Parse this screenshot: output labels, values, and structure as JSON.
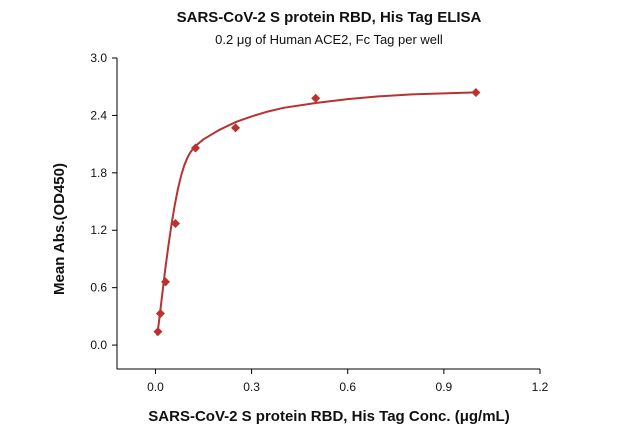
{
  "chart_data": {
    "type": "scatter",
    "title": "SARS-CoV-2 S protein RBD, His Tag ELISA",
    "subtitle": "0.2 μg of Human ACE2, Fc Tag per well",
    "xlabel": "SARS-CoV-2 S protein RBD, His Tag Conc. (μg/mL)",
    "ylabel": "Mean Abs.(OD450)",
    "xlim": [
      -0.12,
      1.2
    ],
    "ylim": [
      -0.25,
      3.0
    ],
    "xticks": [
      "0.0",
      "0.3",
      "0.6",
      "0.9",
      "1.2"
    ],
    "xtick_values": [
      0.0,
      0.3,
      0.6,
      0.9,
      1.2
    ],
    "yticks": [
      "0.0",
      "0.6",
      "1.2",
      "1.8",
      "2.4",
      "3.0"
    ],
    "ytick_values": [
      0.0,
      0.6,
      1.2,
      1.8,
      2.4,
      3.0
    ],
    "grid": false,
    "series": [
      {
        "marker": "diamond",
        "color": "#b83232",
        "x": [
          0.0078,
          0.0156,
          0.0313,
          0.0625,
          0.125,
          0.25,
          0.5,
          1.0
        ],
        "y": [
          0.14,
          0.33,
          0.66,
          1.27,
          2.06,
          2.27,
          2.58,
          2.64
        ]
      }
    ],
    "fit": {
      "type": "curve",
      "color": "#b83232",
      "x": [
        0.005,
        0.01,
        0.015,
        0.02,
        0.03,
        0.04,
        0.05,
        0.06,
        0.07,
        0.08,
        0.09,
        0.1,
        0.11,
        0.125,
        0.15,
        0.2,
        0.25,
        0.3,
        0.35,
        0.4,
        0.5,
        0.6,
        0.7,
        0.8,
        0.9,
        1.0
      ],
      "y": [
        0.1,
        0.22,
        0.36,
        0.5,
        0.78,
        1.03,
        1.26,
        1.46,
        1.63,
        1.77,
        1.88,
        1.96,
        2.02,
        2.08,
        2.15,
        2.25,
        2.33,
        2.39,
        2.44,
        2.48,
        2.53,
        2.57,
        2.6,
        2.62,
        2.63,
        2.64
      ]
    }
  }
}
